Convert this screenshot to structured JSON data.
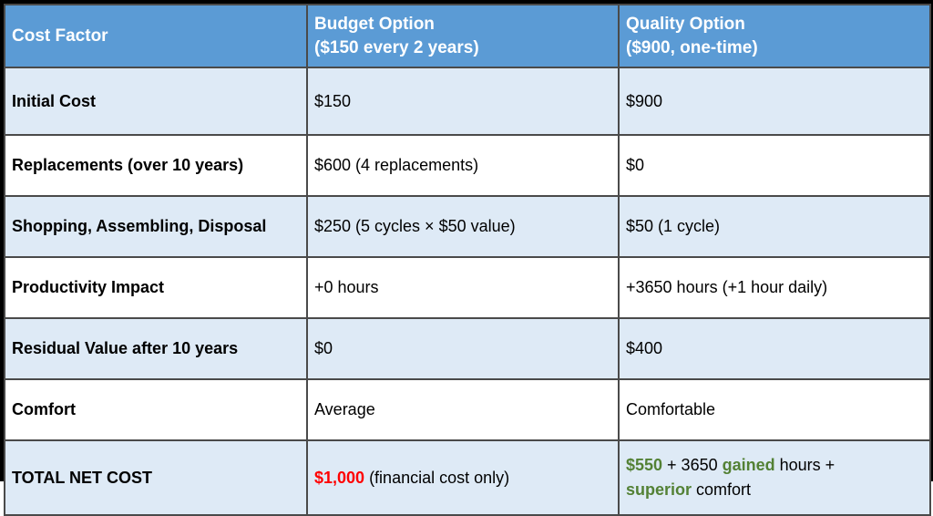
{
  "table": {
    "columns": [
      {
        "label": "Cost Factor",
        "sublabel": ""
      },
      {
        "label": "Budget Option",
        "sublabel": "($150 every 2 years)"
      },
      {
        "label": "Quality Option",
        "sublabel": "($900, one-time)"
      }
    ],
    "rows": [
      {
        "factor": "Initial Cost",
        "budget": "$150",
        "quality": "$900"
      },
      {
        "factor": "Replacements (over 10 years)",
        "budget": "$600 (4 replacements)",
        "quality": "$0"
      },
      {
        "factor": "Shopping, Assembling, Disposal",
        "budget": "$250 (5 cycles × $50 value)",
        "quality": "$50 (1 cycle)"
      },
      {
        "factor": "Productivity Impact",
        "budget": "+0 hours",
        "quality": "+3650 hours (+1 hour daily)"
      },
      {
        "factor": "Residual Value after 10 years",
        "budget": "$0",
        "quality": "$400"
      },
      {
        "factor": "Comfort",
        "budget": "Average",
        "quality": "Comfortable"
      }
    ],
    "total_row": {
      "factor": "TOTAL NET COST",
      "budget_amount": "$1,000",
      "budget_note": " (financial cost only)",
      "quality_seg1": "$550",
      "quality_seg2": " + 3650 ",
      "quality_seg3": "gained",
      "quality_seg4": " hours + ",
      "quality_seg5": "superior",
      "quality_seg6": " comfort"
    },
    "colors": {
      "header_bg": "#5b9bd5",
      "header_text": "#ffffff",
      "band_row_bg": "#deeaf6",
      "plain_row_bg": "#ffffff",
      "grid_line": "#4a4a4a",
      "outer_border": "#000000",
      "total_budget_amount": "#ff0000",
      "total_quality_highlight": "#538135",
      "body_text": "#000000"
    }
  }
}
